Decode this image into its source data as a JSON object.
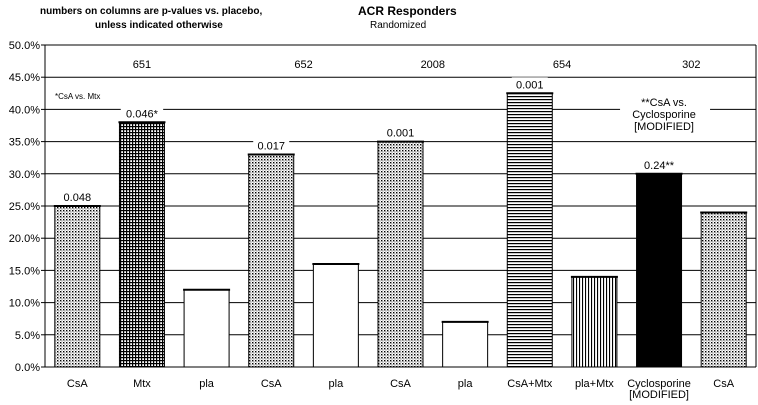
{
  "header": {
    "note_line1": "numbers on columns are p-values vs. placebo,",
    "note_line2": "unless indicated otherwise",
    "title": "ACR Responders",
    "subtitle": "Randomized"
  },
  "chart_data": {
    "type": "bar",
    "title": "ACR Responders",
    "subtitle": "Randomized",
    "xlabel": "",
    "ylabel": "",
    "ylim": [
      0,
      50
    ],
    "yticks": [
      "0.0%",
      "5.0%",
      "10.0%",
      "15.0%",
      "20.0%",
      "25.0%",
      "30.0%",
      "35.0%",
      "40.0%",
      "45.0%",
      "50.0%"
    ],
    "grid": true,
    "categories": [
      "CsA",
      "Mtx",
      "pla",
      "CsA",
      "pla",
      "CsA",
      "pla",
      "CsA+Mtx",
      "pla+Mtx",
      "Cyclosporine [MODIFIED]",
      "CsA"
    ],
    "category_lines": [
      [
        "CsA"
      ],
      [
        "Mtx"
      ],
      [
        "pla"
      ],
      [
        "CsA"
      ],
      [
        "pla"
      ],
      [
        "CsA"
      ],
      [
        "pla"
      ],
      [
        "CsA+Mtx"
      ],
      [
        "pla+Mtx"
      ],
      [
        "Cyclosporine",
        "[MODIFIED]"
      ],
      [
        "CsA"
      ]
    ],
    "values": [
      25,
      38,
      12,
      33,
      16,
      35,
      7,
      42.5,
      14,
      30,
      24
    ],
    "bar_labels": [
      "0.048",
      "0.046*",
      "",
      "0.017",
      "",
      "0.001",
      "",
      "0.001",
      "",
      "0.24**",
      ""
    ],
    "patterns": [
      "dots",
      "grid",
      "none",
      "dots",
      "none",
      "dots",
      "none",
      "hlines",
      "vlines",
      "solid",
      "dots"
    ],
    "studies": [
      {
        "label": "651",
        "first_bar": 0,
        "last_bar": 2
      },
      {
        "label": "652",
        "first_bar": 3,
        "last_bar": 4
      },
      {
        "label": "2008",
        "first_bar": 5,
        "last_bar": 6
      },
      {
        "label": "654",
        "first_bar": 7,
        "last_bar": 8
      },
      {
        "label": "302",
        "first_bar": 9,
        "last_bar": 10
      }
    ],
    "annotations": {
      "footnote_mtx": "*CsA vs. Mtx",
      "footnote_cyclosporine": [
        "**CsA vs.",
        "Cyclosporine",
        "[MODIFIED]"
      ]
    }
  }
}
